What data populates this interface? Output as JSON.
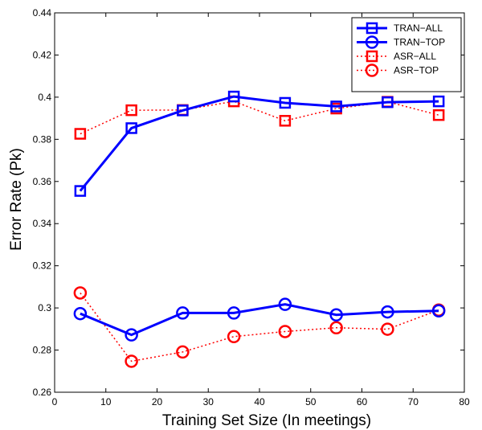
{
  "chart_data": {
    "type": "line",
    "xlabel": "Training Set Size (In meetings)",
    "ylabel": "Error Rate (Pk)",
    "xlim": [
      0,
      80
    ],
    "ylim": [
      0.26,
      0.44
    ],
    "xticks": [
      "0",
      "10",
      "20",
      "30",
      "40",
      "50",
      "60",
      "70",
      "80"
    ],
    "yticks": [
      "0.26",
      "0.28",
      "0.3",
      "0.32",
      "0.34",
      "0.36",
      "0.38",
      "0.4",
      "0.42",
      "0.44"
    ],
    "grid": false,
    "legend_position": "top-right",
    "x": [
      5,
      15,
      25,
      35,
      45,
      55,
      65,
      75
    ],
    "series": [
      {
        "name": "TRAN−ALL",
        "values": [
          0.3555,
          0.3853,
          0.3937,
          0.4003,
          0.3973,
          0.3956,
          0.3976,
          0.398
        ],
        "color": "#0000ff",
        "marker": "square",
        "line": "solid"
      },
      {
        "name": "TRAN−TOP",
        "values": [
          0.2973,
          0.2872,
          0.2976,
          0.2976,
          0.3017,
          0.2967,
          0.2981,
          0.2986
        ],
        "color": "#0000ff",
        "marker": "circle",
        "line": "solid"
      },
      {
        "name": "ASR−ALL",
        "values": [
          0.3826,
          0.3938,
          0.3939,
          0.398,
          0.3888,
          0.3946,
          0.3978,
          0.3915
        ],
        "color": "#ff0000",
        "marker": "square",
        "line": "dotted"
      },
      {
        "name": "ASR−TOP",
        "values": [
          0.3071,
          0.2747,
          0.2791,
          0.2864,
          0.2888,
          0.2906,
          0.2899,
          0.299
        ],
        "color": "#ff0000",
        "marker": "circle",
        "line": "dotted"
      }
    ]
  }
}
